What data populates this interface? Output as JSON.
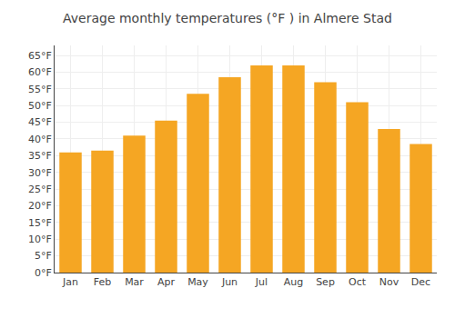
{
  "chart_data": {
    "type": "bar",
    "title": "Average monthly temperatures (°F ) in Almere Stad",
    "categories": [
      "Jan",
      "Feb",
      "Mar",
      "Apr",
      "May",
      "Jun",
      "Jul",
      "Aug",
      "Sep",
      "Oct",
      "Nov",
      "Dec"
    ],
    "values": [
      36,
      36.5,
      41,
      45.5,
      53.5,
      58.5,
      62,
      62,
      57,
      51,
      43,
      38.5
    ],
    "color": "#F5A623",
    "ylim": [
      0,
      68
    ],
    "yticks": [
      {
        "value": 0,
        "label": "0°F"
      },
      {
        "value": 5,
        "label": "5°F"
      },
      {
        "value": 10,
        "label": "10°F"
      },
      {
        "value": 15,
        "label": "15°F"
      },
      {
        "value": 20,
        "label": "20°F"
      },
      {
        "value": 25,
        "label": "25°F"
      },
      {
        "value": 30,
        "label": "30°F"
      },
      {
        "value": 35,
        "label": "35°F"
      },
      {
        "value": 40,
        "label": "40°F"
      },
      {
        "value": 45,
        "label": "45°F"
      },
      {
        "value": 50,
        "label": "50°F"
      },
      {
        "value": 55,
        "label": "55°F"
      },
      {
        "value": 60,
        "label": "60°F"
      },
      {
        "value": 65,
        "label": "65°F"
      }
    ],
    "grid": true
  }
}
